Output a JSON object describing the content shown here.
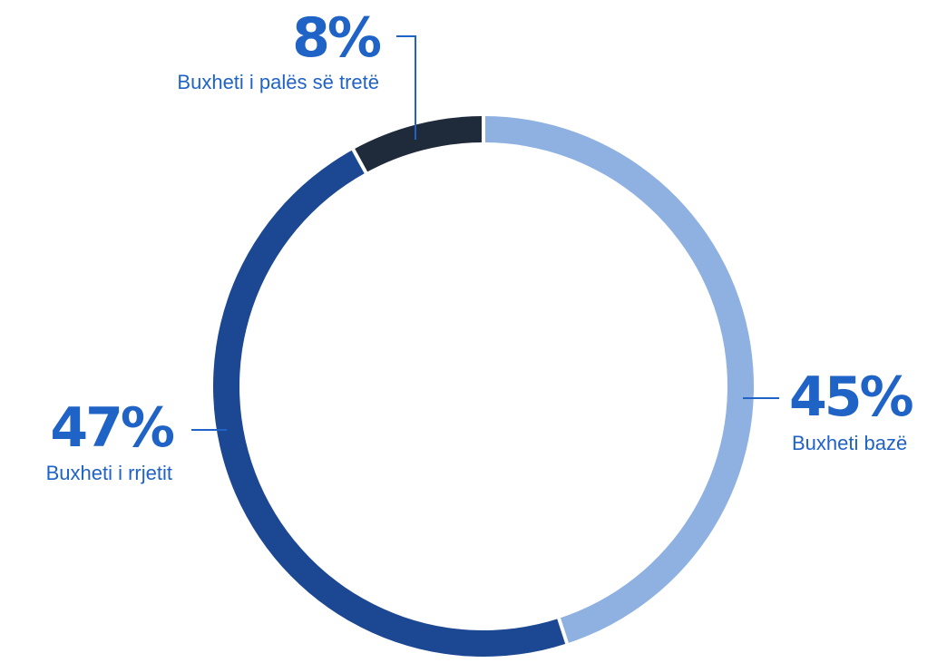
{
  "chart_data": {
    "type": "pie",
    "variant": "donut",
    "slices": [
      {
        "label": "Buxheti bazë",
        "value": 45,
        "value_label": "45%",
        "color": "#8EB1E1"
      },
      {
        "label": "Buxheti i rrjetit",
        "value": 47,
        "value_label": "47%",
        "color": "#1B4793"
      },
      {
        "label": "Buxheti i palës së tretë",
        "value": 8,
        "value_label": "8%",
        "color": "#1F2A3A"
      }
    ],
    "start": "top",
    "direction": "clockwise",
    "annotation_color": "#1F63C7",
    "separator_color": "#ffffff"
  }
}
